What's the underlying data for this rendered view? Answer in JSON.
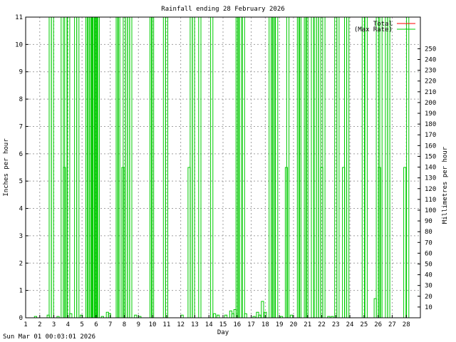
{
  "chart_data": {
    "type": "line",
    "title": "Rainfall ending 28 February 2026",
    "xlabel": "Day",
    "ylabel": "Inches per hour",
    "y2label": "Millimetres per hour",
    "xlim": [
      1,
      29
    ],
    "ylim": [
      0,
      11
    ],
    "y2lim": [
      0,
      279.4
    ],
    "x_ticks": [
      1,
      2,
      3,
      4,
      5,
      6,
      7,
      8,
      9,
      10,
      11,
      12,
      13,
      14,
      15,
      16,
      17,
      18,
      19,
      20,
      21,
      22,
      23,
      24,
      25,
      26,
      27,
      28
    ],
    "y_ticks": [
      0,
      1,
      2,
      3,
      4,
      5,
      6,
      7,
      8,
      9,
      10,
      11
    ],
    "y2_ticks": [
      10,
      20,
      30,
      40,
      50,
      60,
      70,
      80,
      90,
      100,
      110,
      120,
      130,
      140,
      150,
      160,
      170,
      180,
      190,
      200,
      210,
      220,
      230,
      240,
      250
    ],
    "grid": true,
    "legend_position": "top-right",
    "series": [
      {
        "name": "Total",
        "color": "#ff0000",
        "x": [],
        "y": []
      },
      {
        "name": "(Max Rate)",
        "color": "#00cc00",
        "spikes": [
          [
            1.7,
            0.05
          ],
          [
            2.6,
            0.1
          ],
          [
            2.75,
            11
          ],
          [
            2.9,
            11
          ],
          [
            3.3,
            0.05
          ],
          [
            3.6,
            11
          ],
          [
            3.75,
            5.5
          ],
          [
            3.85,
            11
          ],
          [
            4.05,
            11
          ],
          [
            4.2,
            0.15
          ],
          [
            4.55,
            11
          ],
          [
            4.7,
            11
          ],
          [
            4.95,
            0.1
          ],
          [
            5.35,
            11
          ],
          [
            5.45,
            11
          ],
          [
            5.6,
            11
          ],
          [
            5.7,
            11
          ],
          [
            5.8,
            11
          ],
          [
            5.85,
            11
          ],
          [
            5.95,
            11
          ],
          [
            6.05,
            11
          ],
          [
            6.15,
            11
          ],
          [
            6.45,
            0.05
          ],
          [
            6.8,
            0.2
          ],
          [
            6.95,
            0.15
          ],
          [
            7.5,
            11
          ],
          [
            7.6,
            11
          ],
          [
            7.9,
            5.5
          ],
          [
            8.0,
            11
          ],
          [
            8.15,
            11
          ],
          [
            8.3,
            11
          ],
          [
            8.45,
            11
          ],
          [
            8.8,
            0.1
          ],
          [
            9.1,
            0.05
          ],
          [
            9.9,
            11
          ],
          [
            10.0,
            11
          ],
          [
            10.85,
            11
          ],
          [
            11.0,
            11
          ],
          [
            12.1,
            0.1
          ],
          [
            12.6,
            5.5
          ],
          [
            12.75,
            11
          ],
          [
            12.9,
            11
          ],
          [
            13.35,
            11
          ],
          [
            14.2,
            11
          ],
          [
            14.4,
            0.15
          ],
          [
            14.65,
            0.1
          ],
          [
            15.2,
            0.1
          ],
          [
            15.55,
            0.25
          ],
          [
            15.7,
            0.15
          ],
          [
            15.85,
            0.3
          ],
          [
            16.0,
            11
          ],
          [
            16.1,
            11
          ],
          [
            16.25,
            11
          ],
          [
            16.45,
            11
          ],
          [
            16.6,
            0.15
          ],
          [
            17.2,
            0.05
          ],
          [
            17.45,
            0.2
          ],
          [
            17.6,
            0.1
          ],
          [
            17.8,
            0.6
          ],
          [
            18.0,
            0.2
          ],
          [
            18.35,
            11
          ],
          [
            18.5,
            11
          ],
          [
            18.6,
            11
          ],
          [
            18.8,
            11
          ],
          [
            19.15,
            0.05
          ],
          [
            19.5,
            5.5
          ],
          [
            19.6,
            11
          ],
          [
            19.85,
            0.1
          ],
          [
            20.35,
            11
          ],
          [
            20.45,
            11
          ],
          [
            20.85,
            11
          ],
          [
            20.95,
            11
          ],
          [
            21.35,
            11
          ],
          [
            21.55,
            11
          ],
          [
            21.7,
            11
          ],
          [
            21.85,
            11
          ],
          [
            22.0,
            5.5
          ],
          [
            22.15,
            11
          ],
          [
            22.5,
            0.05
          ],
          [
            22.75,
            0.05
          ],
          [
            23.0,
            11
          ],
          [
            23.15,
            11
          ],
          [
            23.55,
            5.5
          ],
          [
            23.7,
            11
          ],
          [
            23.85,
            11
          ],
          [
            24.95,
            11
          ],
          [
            25.15,
            11
          ],
          [
            25.8,
            0.7
          ],
          [
            25.95,
            11
          ],
          [
            26.1,
            5.5
          ],
          [
            26.2,
            11
          ],
          [
            26.6,
            11
          ],
          [
            26.75,
            11
          ],
          [
            27.9,
            5.5
          ],
          [
            28.1,
            11
          ]
        ]
      }
    ]
  },
  "footer": {
    "timestamp": "Sun Mar 01 00:03:01 2026"
  }
}
